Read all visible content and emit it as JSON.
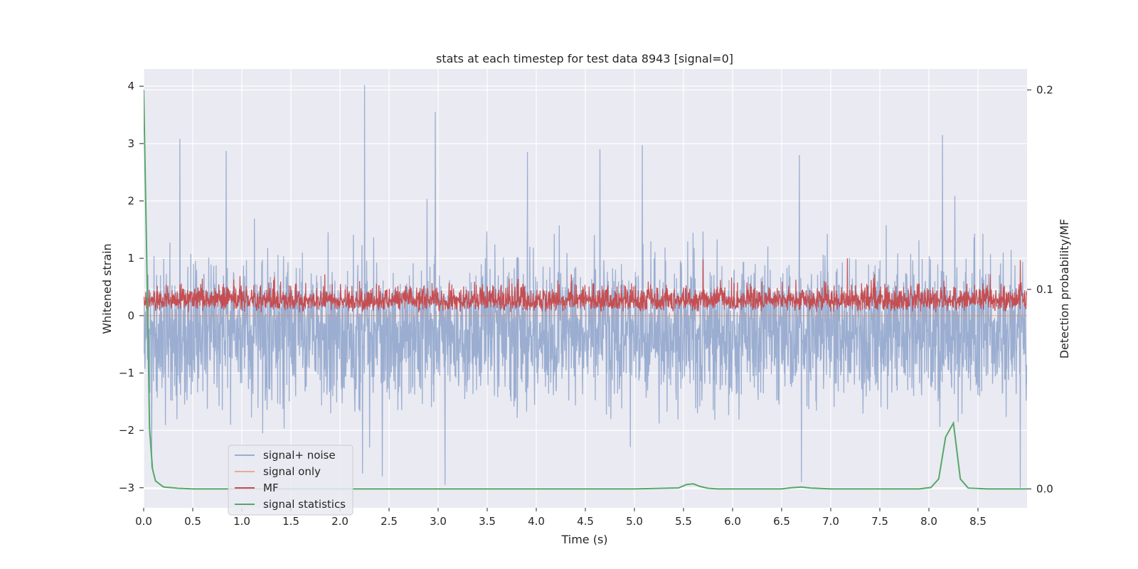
{
  "chart_data": {
    "type": "line",
    "title": "stats at each timestep for test data 8943 [signal=0]",
    "xlabel": "Time (s)",
    "ylabel": "Whitened strain",
    "y2label": "Detection probability/MF",
    "xlim": [
      0.0,
      9.0
    ],
    "ylim": [
      -3.35,
      4.3
    ],
    "y2lim": [
      -0.0095,
      0.2105
    ],
    "xticks": [
      0.0,
      0.5,
      1.0,
      1.5,
      2.0,
      2.5,
      3.0,
      3.5,
      4.0,
      4.5,
      5.0,
      5.5,
      6.0,
      6.5,
      7.0,
      7.5,
      8.0,
      8.5
    ],
    "xtick_labels": [
      "0.0",
      "0.5",
      "1.0",
      "1.5",
      "2.0",
      "2.5",
      "3.0",
      "3.5",
      "4.0",
      "4.5",
      "5.0",
      "5.5",
      "6.0",
      "6.5",
      "7.0",
      "7.5",
      "8.0",
      "8.5"
    ],
    "yticks": [
      4,
      3,
      2,
      1,
      0,
      -1,
      -2,
      -3
    ],
    "ytick_labels": [
      "4",
      "3",
      "2",
      "1",
      "0",
      "−1",
      "−2",
      "−3"
    ],
    "y2ticks": [
      0.2,
      0.1,
      0.0
    ],
    "y2tick_labels": [
      "0.2",
      "0.1",
      "0.0"
    ],
    "grid": true,
    "legend_position": "bottom-left",
    "series": [
      {
        "name": "signal+ noise",
        "axis": "left",
        "color": "#4c72b0",
        "style": "dense noisy trace, approx. range -3.0 to 4.0, mostly within -2 to 2",
        "highlight_peaks": [
          [
            0.37,
            3.08
          ],
          [
            0.84,
            2.87
          ],
          [
            2.25,
            4.02
          ],
          [
            2.97,
            3.55
          ],
          [
            3.91,
            2.85
          ],
          [
            4.65,
            2.9
          ],
          [
            5.08,
            2.97
          ],
          [
            6.68,
            2.8
          ],
          [
            8.14,
            3.15
          ]
        ],
        "highlight_troughs": [
          [
            0.08,
            -2.65
          ],
          [
            2.23,
            -2.75
          ],
          [
            2.43,
            -2.8
          ],
          [
            3.07,
            -2.95
          ],
          [
            6.7,
            -2.9
          ],
          [
            8.93,
            -3.0
          ]
        ]
      },
      {
        "name": "signal only",
        "axis": "left",
        "color": "#dd8452",
        "x": [
          0.0,
          9.0
        ],
        "values": [
          0.0,
          0.0
        ]
      },
      {
        "name": "MF",
        "axis": "left",
        "color": "#c44e52",
        "style": "dense trace between approx. 0 and 0.9",
        "highlight_peaks": [
          [
            5.7,
            0.98
          ],
          [
            7.17,
            1.0
          ],
          [
            8.93,
            0.97
          ]
        ]
      },
      {
        "name": "signal statistics",
        "axis": "right",
        "color": "#55a868",
        "x": [
          0.0,
          0.03,
          0.06,
          0.09,
          0.12,
          0.2,
          0.35,
          0.5,
          1.0,
          2.0,
          3.0,
          4.0,
          5.0,
          5.45,
          5.53,
          5.6,
          5.67,
          5.75,
          5.85,
          6.2,
          6.5,
          6.6,
          6.7,
          6.8,
          7.0,
          7.5,
          7.9,
          8.02,
          8.1,
          8.17,
          8.25,
          8.32,
          8.4,
          8.6,
          9.0
        ],
        "values": [
          0.2,
          0.12,
          0.03,
          0.01,
          0.004,
          0.001,
          0.0003,
          0.0,
          0.0,
          0.0,
          0.0,
          0.0,
          0.0,
          0.0005,
          0.0022,
          0.0025,
          0.0012,
          0.0003,
          0.0,
          0.0,
          0.0,
          0.0006,
          0.0009,
          0.0004,
          0.0,
          0.0,
          0.0,
          0.0007,
          0.005,
          0.026,
          0.033,
          0.005,
          0.0004,
          0.0,
          0.0
        ]
      }
    ]
  }
}
